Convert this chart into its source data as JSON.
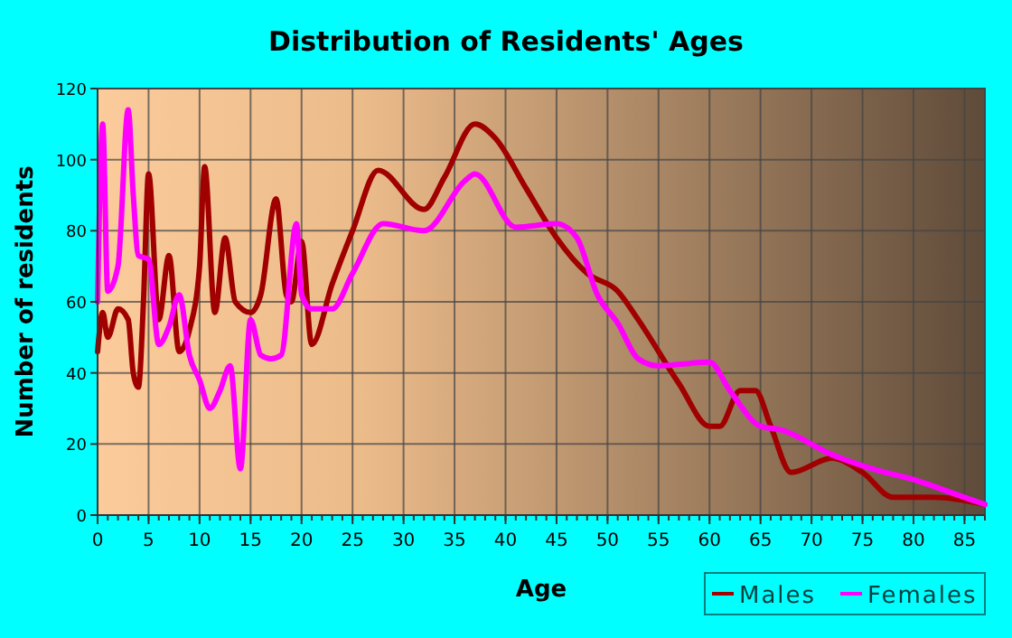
{
  "chart_data": {
    "type": "line",
    "title": "Distribution of Residents' Ages",
    "xlabel": "Age",
    "ylabel": "Number of residents",
    "xlim": [
      0,
      87
    ],
    "xticks": [
      0,
      5,
      10,
      15,
      20,
      25,
      30,
      35,
      40,
      45,
      50,
      55,
      60,
      65,
      70,
      75,
      80,
      85
    ],
    "ylim": [
      0,
      120
    ],
    "yticks": [
      0,
      20,
      40,
      60,
      80,
      100,
      120
    ],
    "grid": true,
    "legend": "bottom right",
    "series": [
      {
        "name": "Males",
        "color": "#a00000",
        "x": [
          0,
          0.5,
          1,
          2,
          3,
          3.5,
          4,
          4.5,
          5,
          6,
          7,
          8,
          9,
          10,
          10.5,
          11.5,
          12.5,
          13.5,
          15,
          16,
          17.5,
          18.5,
          19,
          20,
          21,
          23,
          25,
          27.5,
          32,
          34,
          37,
          39,
          42,
          45,
          48,
          51,
          53,
          57,
          60,
          61,
          63,
          64.5,
          66,
          68,
          72,
          75,
          78,
          82,
          87
        ],
        "values": [
          46,
          57,
          50,
          58,
          55,
          40,
          36,
          60,
          96,
          55,
          73,
          46,
          52,
          70,
          98,
          57,
          78,
          60,
          57,
          62,
          89,
          62,
          60,
          77,
          48,
          65,
          80,
          97,
          86,
          95,
          110,
          106,
          92,
          78,
          68,
          63,
          55,
          37,
          25,
          25,
          35,
          35,
          25,
          12,
          16,
          12,
          5,
          5,
          3
        ]
      },
      {
        "name": "Females",
        "color": "#ff00ff",
        "x": [
          0,
          0.5,
          1,
          2,
          3,
          3.5,
          4,
          5,
          6,
          7,
          8,
          9,
          10,
          11,
          12,
          13,
          14,
          15,
          16,
          17,
          18,
          19.5,
          20,
          21,
          23,
          25,
          28,
          32,
          36,
          37,
          41,
          45,
          47,
          49,
          51,
          53,
          55,
          60,
          62,
          65,
          67,
          72,
          76,
          80,
          85,
          87
        ],
        "values": [
          60,
          110,
          63,
          70,
          114,
          90,
          73,
          72,
          48,
          53,
          62,
          45,
          38,
          30,
          35,
          42,
          13,
          55,
          45,
          44,
          45,
          82,
          62,
          58,
          58,
          68,
          82,
          80,
          94,
          96,
          81,
          82,
          78,
          62,
          54,
          44,
          42,
          43,
          35,
          25,
          24,
          17,
          13,
          10,
          5,
          3
        ]
      }
    ]
  }
}
